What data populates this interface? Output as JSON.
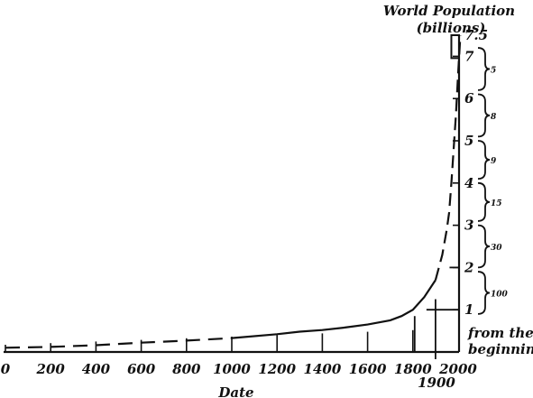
{
  "chart_data": {
    "type": "line",
    "title": "World Population",
    "title_unit": "(billions)",
    "xlabel": "Date",
    "ylabel": "",
    "x_ticks": [
      "0",
      "200",
      "400",
      "600",
      "800",
      "1000",
      "1200",
      "1400",
      "1600",
      "1800",
      "2000"
    ],
    "x_extra_label": "1900",
    "y_ticks": [
      "1",
      "2",
      "3",
      "4",
      "5",
      "6",
      "7",
      "7.5"
    ],
    "xlim": [
      0,
      2000
    ],
    "ylim": [
      0,
      7.5
    ],
    "series": [
      {
        "x": [
          0,
          200,
          400,
          600,
          800,
          1000,
          1200,
          1300,
          1400,
          1500,
          1600,
          1700,
          1750,
          1800,
          1850,
          1900,
          1930,
          1950,
          1960,
          1970,
          1980,
          1990,
          2000,
          2010
        ],
        "y": [
          0.1,
          0.12,
          0.16,
          0.22,
          0.27,
          0.33,
          0.42,
          0.48,
          0.52,
          0.58,
          0.65,
          0.75,
          0.85,
          1.0,
          1.3,
          1.7,
          2.3,
          2.9,
          3.3,
          4.0,
          4.8,
          5.6,
          6.6,
          7.5
        ]
      }
    ],
    "annotations": {
      "brace_labels": [
        "5",
        "8",
        "9",
        "15",
        "30",
        "100"
      ],
      "bottom_note_line1": "from the",
      "bottom_note_line2": "beginning"
    }
  }
}
